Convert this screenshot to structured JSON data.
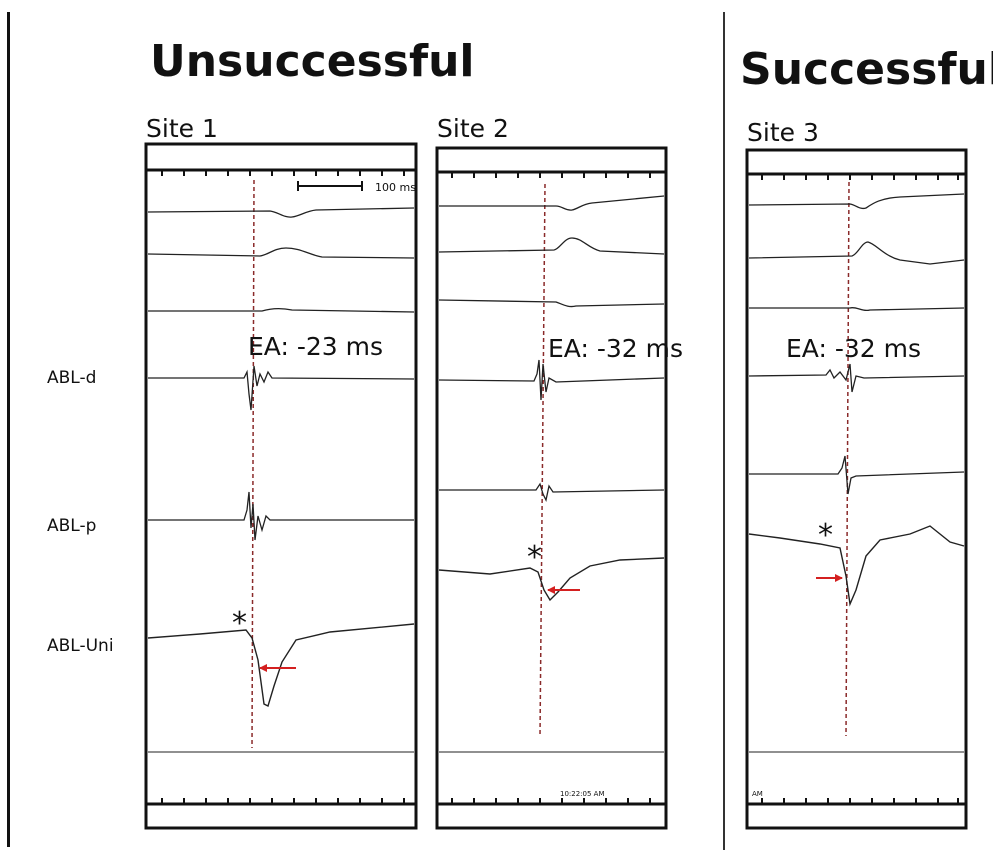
{
  "headings": {
    "unsuccessful": "Unsuccessful",
    "successful": "Successful"
  },
  "sites": [
    {
      "title": "Site 1",
      "ea": "EA: -23 ms"
    },
    {
      "title": "Site 2",
      "ea": "EA: -32 ms"
    },
    {
      "title": "Site 3",
      "ea": "EA: -32 ms"
    }
  ],
  "channel_labels": {
    "distal": "ABL-d",
    "proximal": "ABL-p",
    "unipolar": "ABL-Uni"
  },
  "scale_bar": "100 ms",
  "asterisk": "*",
  "timestamps": {
    "site2": "10:22:05 AM",
    "site3": "AM"
  },
  "colors": {
    "trace": "#222222",
    "frame": "#111111",
    "reference_line": "#8a2a2a",
    "arrow": "#d42020"
  }
}
